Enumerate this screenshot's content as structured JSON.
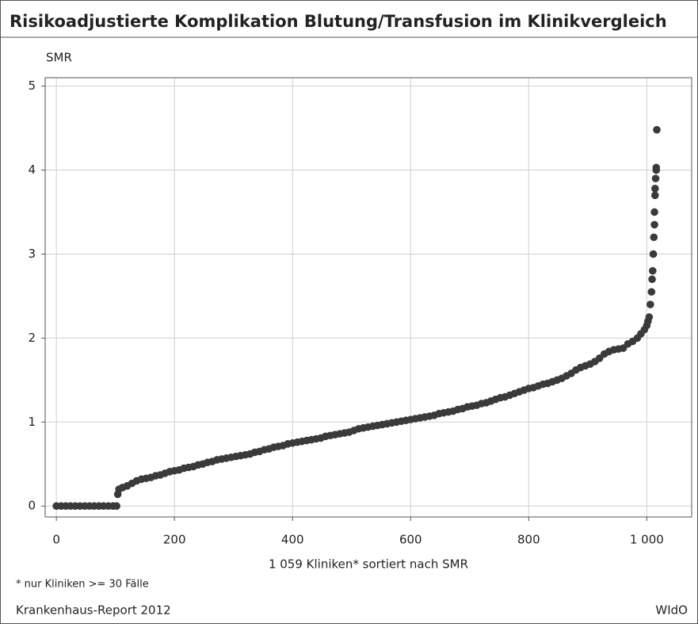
{
  "chart_data": {
    "type": "scatter",
    "title": "Risikoadjustierte Komplikation Blutung/Transfusion im Klinikvergleich",
    "y_label": "SMR",
    "x_label": "1 059 Kliniken* sortiert nach SMR",
    "footnote": "* nur Kliniken >= 30 Fälle",
    "source": "Krankenhaus-Report 2012",
    "publisher": "WIdO",
    "color": "#3a3a3a",
    "grid": true,
    "xlim": [
      -19,
      1076
    ],
    "ylim": [
      -0.13,
      5.1
    ],
    "xticks": [
      0,
      200,
      400,
      600,
      800,
      {
        "value": 1000,
        "label": "1 000"
      }
    ],
    "yticks": [
      0,
      1,
      2,
      3,
      4,
      5
    ],
    "x": [
      0,
      8,
      16,
      24,
      32,
      40,
      48,
      56,
      64,
      72,
      80,
      88,
      96,
      102,
      104,
      106,
      112,
      120,
      128,
      136,
      144,
      152,
      160,
      168,
      176,
      184,
      192,
      200,
      208,
      216,
      224,
      232,
      240,
      248,
      256,
      264,
      272,
      280,
      288,
      296,
      304,
      312,
      320,
      328,
      336,
      344,
      352,
      360,
      368,
      376,
      384,
      392,
      400,
      408,
      416,
      424,
      432,
      440,
      448,
      456,
      464,
      472,
      480,
      488,
      496,
      504,
      512,
      520,
      528,
      536,
      544,
      552,
      560,
      568,
      576,
      584,
      592,
      600,
      608,
      616,
      624,
      632,
      640,
      648,
      656,
      664,
      672,
      680,
      688,
      696,
      704,
      712,
      720,
      728,
      736,
      744,
      752,
      760,
      768,
      776,
      784,
      792,
      800,
      808,
      816,
      824,
      832,
      840,
      848,
      856,
      864,
      872,
      880,
      888,
      896,
      904,
      912,
      920,
      928,
      936,
      944,
      952,
      960,
      968,
      976,
      984,
      990,
      996,
      1000,
      1002,
      1004,
      1006,
      1008,
      1009,
      1010,
      1011,
      1012,
      1013,
      1013,
      1014,
      1014,
      1015,
      1016,
      1016,
      1017
    ],
    "values": [
      0,
      0,
      0,
      0,
      0,
      0,
      0,
      0,
      0,
      0,
      0,
      0,
      0,
      0,
      0.14,
      0.2,
      0.22,
      0.24,
      0.27,
      0.3,
      0.32,
      0.33,
      0.34,
      0.36,
      0.37,
      0.39,
      0.41,
      0.42,
      0.43,
      0.45,
      0.46,
      0.47,
      0.49,
      0.5,
      0.52,
      0.53,
      0.55,
      0.56,
      0.57,
      0.58,
      0.59,
      0.6,
      0.61,
      0.62,
      0.64,
      0.65,
      0.67,
      0.68,
      0.7,
      0.71,
      0.72,
      0.74,
      0.75,
      0.76,
      0.77,
      0.78,
      0.79,
      0.8,
      0.81,
      0.83,
      0.84,
      0.85,
      0.86,
      0.87,
      0.88,
      0.9,
      0.92,
      0.93,
      0.94,
      0.95,
      0.96,
      0.97,
      0.98,
      0.99,
      1.0,
      1.01,
      1.02,
      1.03,
      1.04,
      1.05,
      1.06,
      1.07,
      1.08,
      1.1,
      1.11,
      1.12,
      1.13,
      1.15,
      1.16,
      1.18,
      1.19,
      1.2,
      1.22,
      1.23,
      1.25,
      1.27,
      1.29,
      1.3,
      1.32,
      1.34,
      1.36,
      1.38,
      1.4,
      1.41,
      1.43,
      1.45,
      1.46,
      1.48,
      1.5,
      1.52,
      1.55,
      1.58,
      1.62,
      1.65,
      1.67,
      1.69,
      1.72,
      1.76,
      1.81,
      1.84,
      1.86,
      1.87,
      1.88,
      1.93,
      1.96,
      2.0,
      2.05,
      2.1,
      2.15,
      2.2,
      2.25,
      2.4,
      2.55,
      2.7,
      2.8,
      3.0,
      3.2,
      3.35,
      3.5,
      3.7,
      3.78,
      3.9,
      4.0,
      4.03,
      4.48
    ]
  }
}
